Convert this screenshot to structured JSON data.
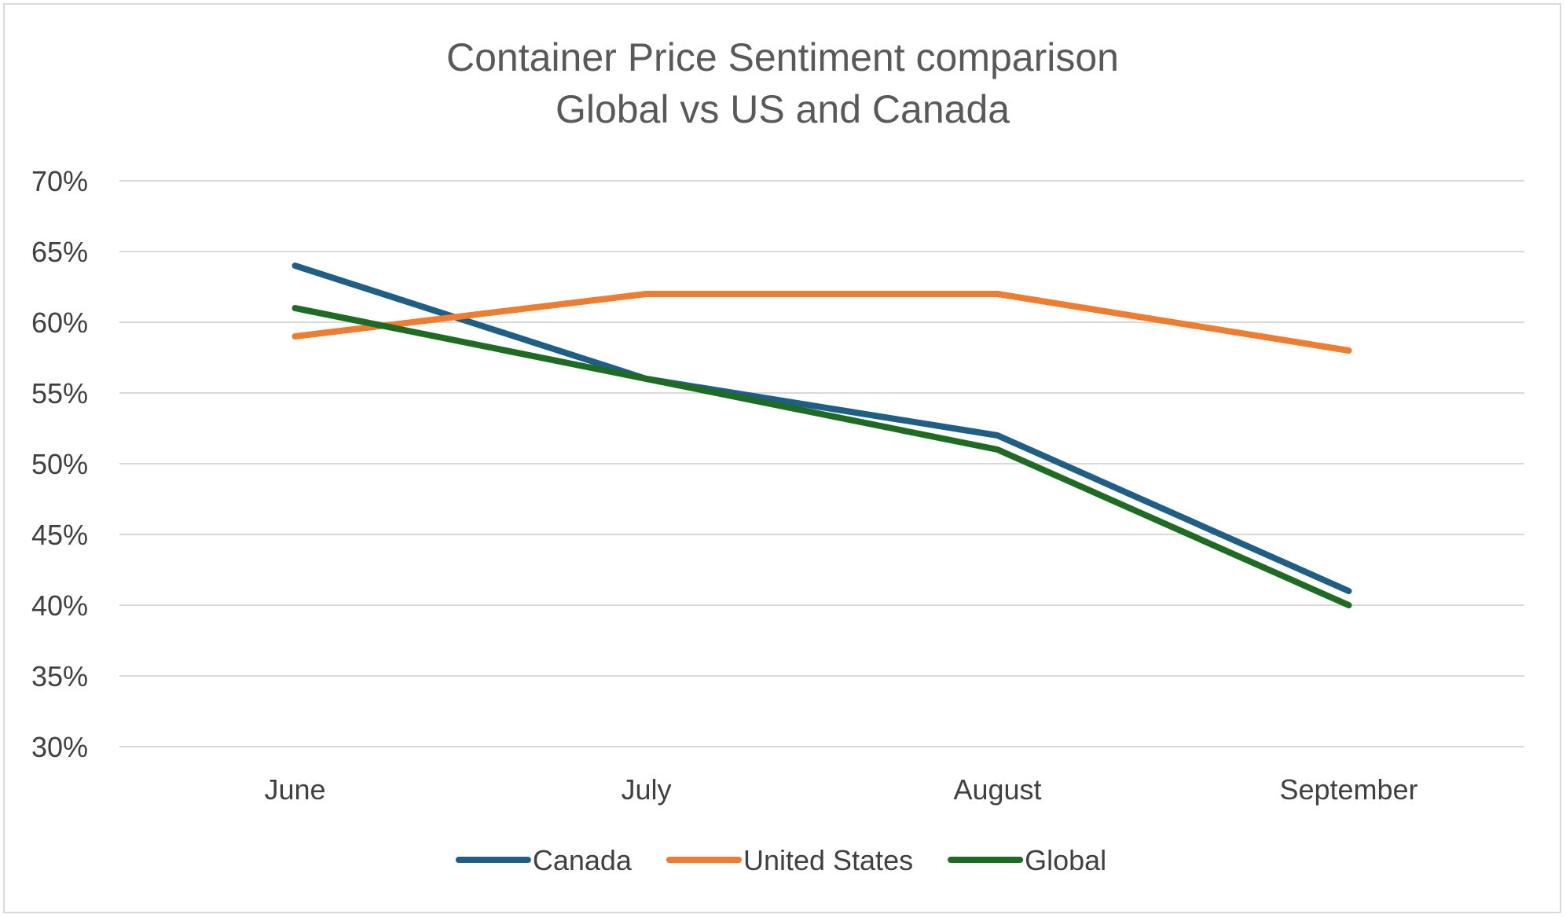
{
  "chart_data": {
    "type": "line",
    "title_lines": [
      "Container Price Sentiment comparison",
      "Global vs US and Canada"
    ],
    "categories": [
      "June",
      "July",
      "August",
      "September"
    ],
    "y_tick_labels": [
      "30%",
      "35%",
      "40%",
      "45%",
      "50%",
      "55%",
      "60%",
      "65%",
      "70%"
    ],
    "ylim": [
      30,
      70
    ],
    "y_step": 5,
    "grid": "horizontal",
    "legend_position": "bottom",
    "series": [
      {
        "name": "Canada",
        "values": [
          64,
          56,
          52,
          41
        ],
        "color": "#1f5f86"
      },
      {
        "name": "United States",
        "values": [
          59,
          62,
          62,
          58
        ],
        "color": "#ed7d31"
      },
      {
        "name": "Global",
        "values": [
          61,
          56,
          51,
          40
        ],
        "color": "#1e6b24"
      }
    ]
  }
}
